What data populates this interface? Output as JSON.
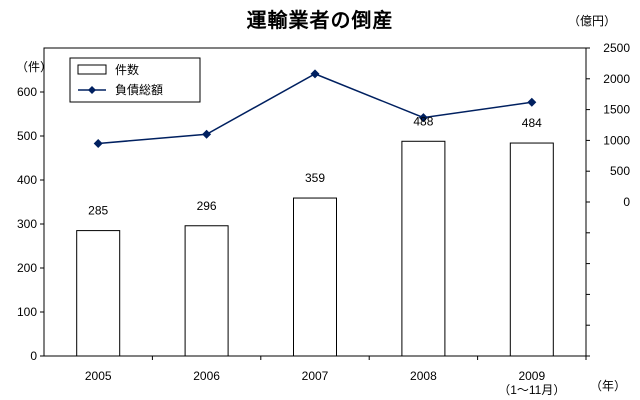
{
  "title": "運輸業者の倒産",
  "units": {
    "left": "（件）",
    "right": "（億円）",
    "x": "（年）"
  },
  "chart_data": {
    "type": "bar",
    "categories": [
      "2005",
      "2006",
      "2007",
      "2008",
      "2009\n（1〜11月）"
    ],
    "x_labels": [
      [
        "2005"
      ],
      [
        "2006"
      ],
      [
        "2007"
      ],
      [
        "2008"
      ],
      [
        "2009",
        "（1〜11月）"
      ]
    ],
    "series": [
      {
        "name": "件数",
        "type": "bar",
        "axis": "left",
        "values": [
          285,
          296,
          359,
          488,
          484
        ]
      },
      {
        "name": "負債総額",
        "type": "line",
        "axis": "right",
        "values": [
          950,
          1100,
          2080,
          1370,
          1620
        ]
      }
    ],
    "y_left": {
      "min": 0,
      "max": 700,
      "ticks": [
        0,
        100,
        200,
        300,
        400,
        500,
        600
      ]
    },
    "y_right": {
      "min": -2500,
      "max": 2500,
      "ticks": [
        0,
        500,
        1000,
        1500,
        2000,
        2500
      ]
    },
    "legend": {
      "position": "top-left",
      "items": [
        "件数",
        "負債総額"
      ]
    },
    "colors": {
      "bar_fill": "#ffffff",
      "bar_stroke": "#000000",
      "line": "#002060",
      "marker": "#002060"
    },
    "grid": false
  }
}
